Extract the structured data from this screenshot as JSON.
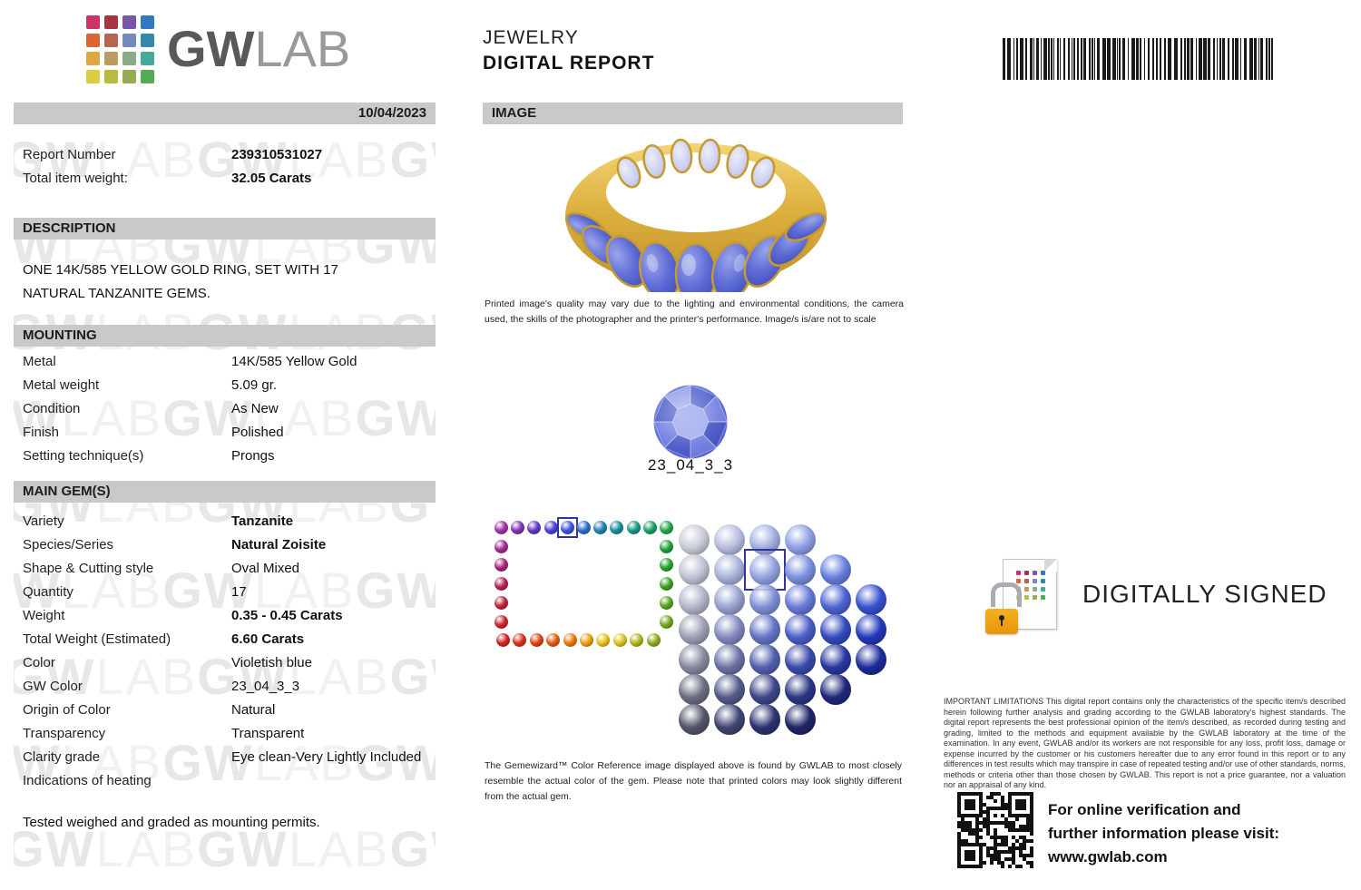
{
  "report": {
    "logo": {
      "text_bold": "GW",
      "text_light": "LAB",
      "dot_colors": [
        "#cc3366",
        "#a83343",
        "#7757aa",
        "#3379bf",
        "#dd6533",
        "#b86452",
        "#7689bd",
        "#3489ab",
        "#dfa743",
        "#bb9а64",
        "#8aaa88",
        "#45a998",
        "#ddcb43",
        "#b9ba42",
        "#98aa54",
        "#55aa55"
      ]
    },
    "date": "10/04/2023",
    "top_fields": [
      {
        "label": "Report Number",
        "value": "239310531027",
        "bold": true
      },
      {
        "label": "Total item weight:",
        "value": "32.05 Carats",
        "bold": true
      }
    ],
    "sections": {
      "description": {
        "title": "DESCRIPTION",
        "text": "ONE 14K/585 YELLOW GOLD RING, SET WITH 17 NATURAL TANZANITE GEMS."
      },
      "mounting": {
        "title": "MOUNTING",
        "rows": [
          {
            "label": "Metal",
            "value": "14K/585 Yellow Gold",
            "bold": false
          },
          {
            "label": "Metal weight",
            "value": "5.09 gr.",
            "bold": false
          },
          {
            "label": "Condition",
            "value": "As New",
            "bold": false
          },
          {
            "label": "Finish",
            "value": "Polished",
            "bold": false
          },
          {
            "label": "Setting technique(s)",
            "value": "Prongs",
            "bold": false
          }
        ]
      },
      "main_gems": {
        "title": "MAIN GEM(S)",
        "rows": [
          {
            "label": "Variety",
            "value": "Tanzanite",
            "bold": true
          },
          {
            "label": "Species/Series",
            "value": "Natural Zoisite",
            "bold": true
          },
          {
            "label": "Shape & Cutting style",
            "value": "Oval Mixed",
            "bold": false
          },
          {
            "label": "Quantity",
            "value": "17",
            "bold": false
          },
          {
            "label": "Weight",
            "value": "0.35 - 0.45 Carats",
            "bold": true
          },
          {
            "label": "Total Weight (Estimated)",
            "value": "6.60 Carats",
            "bold": true
          },
          {
            "label": "Color",
            "value": "Violetish blue",
            "bold": false
          },
          {
            "label": "GW Color",
            "value": "23_04_3_3",
            "bold": false
          },
          {
            "label": "Origin of Color",
            "value": "Natural",
            "bold": false
          },
          {
            "label": "Transparency",
            "value": "Transparent",
            "bold": false
          },
          {
            "label": "Clarity grade",
            "value": "Eye clean-Very Lightly Included",
            "bold": false
          },
          {
            "label": "Indications of heating",
            "value": "",
            "bold": false
          }
        ]
      }
    },
    "footnote": "Tested weighed and graded as mounting permits."
  },
  "center": {
    "title_line1": "JEWELRY",
    "title_line2": "DIGITAL REPORT",
    "image_section_title": "IMAGE",
    "image_caption": "Printed image's quality may vary due to the lighting and environmental conditions, the camera used, the skills of the photographer and the printer's performance. Image/s is/are not to scale",
    "gem_label": "23_04_3_3",
    "color_reference": {
      "note": "The Gemewizard™ Color Reference image displayed above is found by GWLAB to most closely resemble the actual color of the gem. Please note that printed colors may look slightly different from the actual gem.",
      "hue_ring": {
        "top": [
          "#a233a8",
          "#8533bb",
          "#6338cc",
          "#4a43d6",
          "#3f55de",
          "#2f6ec8",
          "#2183b4",
          "#178f9e",
          "#169c85",
          "#1da266",
          "#1fa84a"
        ],
        "right": [
          "#1fa43a",
          "#2aa42e",
          "#3aa524",
          "#55a71f",
          "#78a81c"
        ],
        "bottom": [
          "#d42424",
          "#da3418",
          "#e04514",
          "#e55d12",
          "#ea7a10",
          "#eda012",
          "#eec218",
          "#dec522",
          "#b4b722",
          "#93a920"
        ],
        "left": [
          "#a42a90",
          "#ac2776",
          "#b92556",
          "#c42440",
          "#cc2430"
        ],
        "selected_side": "top",
        "selected_index": 4
      },
      "tone_grid": {
        "rows": [
          [
            "#c9ccd8",
            "#b7bede",
            "#a3afe2",
            "#8d9fe6"
          ],
          [
            "#bfc2d2",
            "#a9b1da",
            "#93a2e0",
            "#7b8fe0",
            "#6880de"
          ],
          [
            "#b2b5c9",
            "#99a1d0",
            "#7f8fd6",
            "#6679d6",
            "#4d63d2",
            "#3750ce"
          ],
          [
            "#9da0b6",
            "#8289bf",
            "#6474c6",
            "#4b5ec6",
            "#3449be",
            "#2238ba"
          ],
          [
            "#868a9e",
            "#6b73a6",
            "#5160ae",
            "#3a4aaa",
            "#2838a2",
            "#1d2c9a"
          ],
          [
            "#6c6f83",
            "#545c8a",
            "#3e478c",
            "#2c3684",
            "#20297a"
          ],
          [
            "#54566a",
            "#404672",
            "#2d3372",
            "#1f2566"
          ]
        ],
        "selected_row": 1,
        "selected_col": 2
      }
    }
  },
  "right": {
    "digitally_signed": "DIGITALLY SIGNED",
    "limitations": "IMPORTANT LIMITATIONS This digital report contains only the characteristics of the specific item/s described herein following further analysis and grading according to the GWLAB laboratory's highest standards. The digital report represents the best professional opinion of the item/s described, as recorded during testing and grading, limited to the methods and equipment available by the GWLAB laboratory at the time of the examination. In any event, GWLAB and/or its workers are not responsible for any loss, profit loss, damage or expense incurred by the customer or his customers hereafter due to any error found in this report or to any differences in test results which may transpire in case of repeated testing and/or use of other standards, norms, methods or criteria other than those chosen by GWLAB. This report is not a price guarantee, nor a valuation nor an appraisal of any kind.",
    "verification": {
      "line1": "For online verification and",
      "line2": "further information please visit:",
      "line3": "www.gwlab.com"
    }
  }
}
